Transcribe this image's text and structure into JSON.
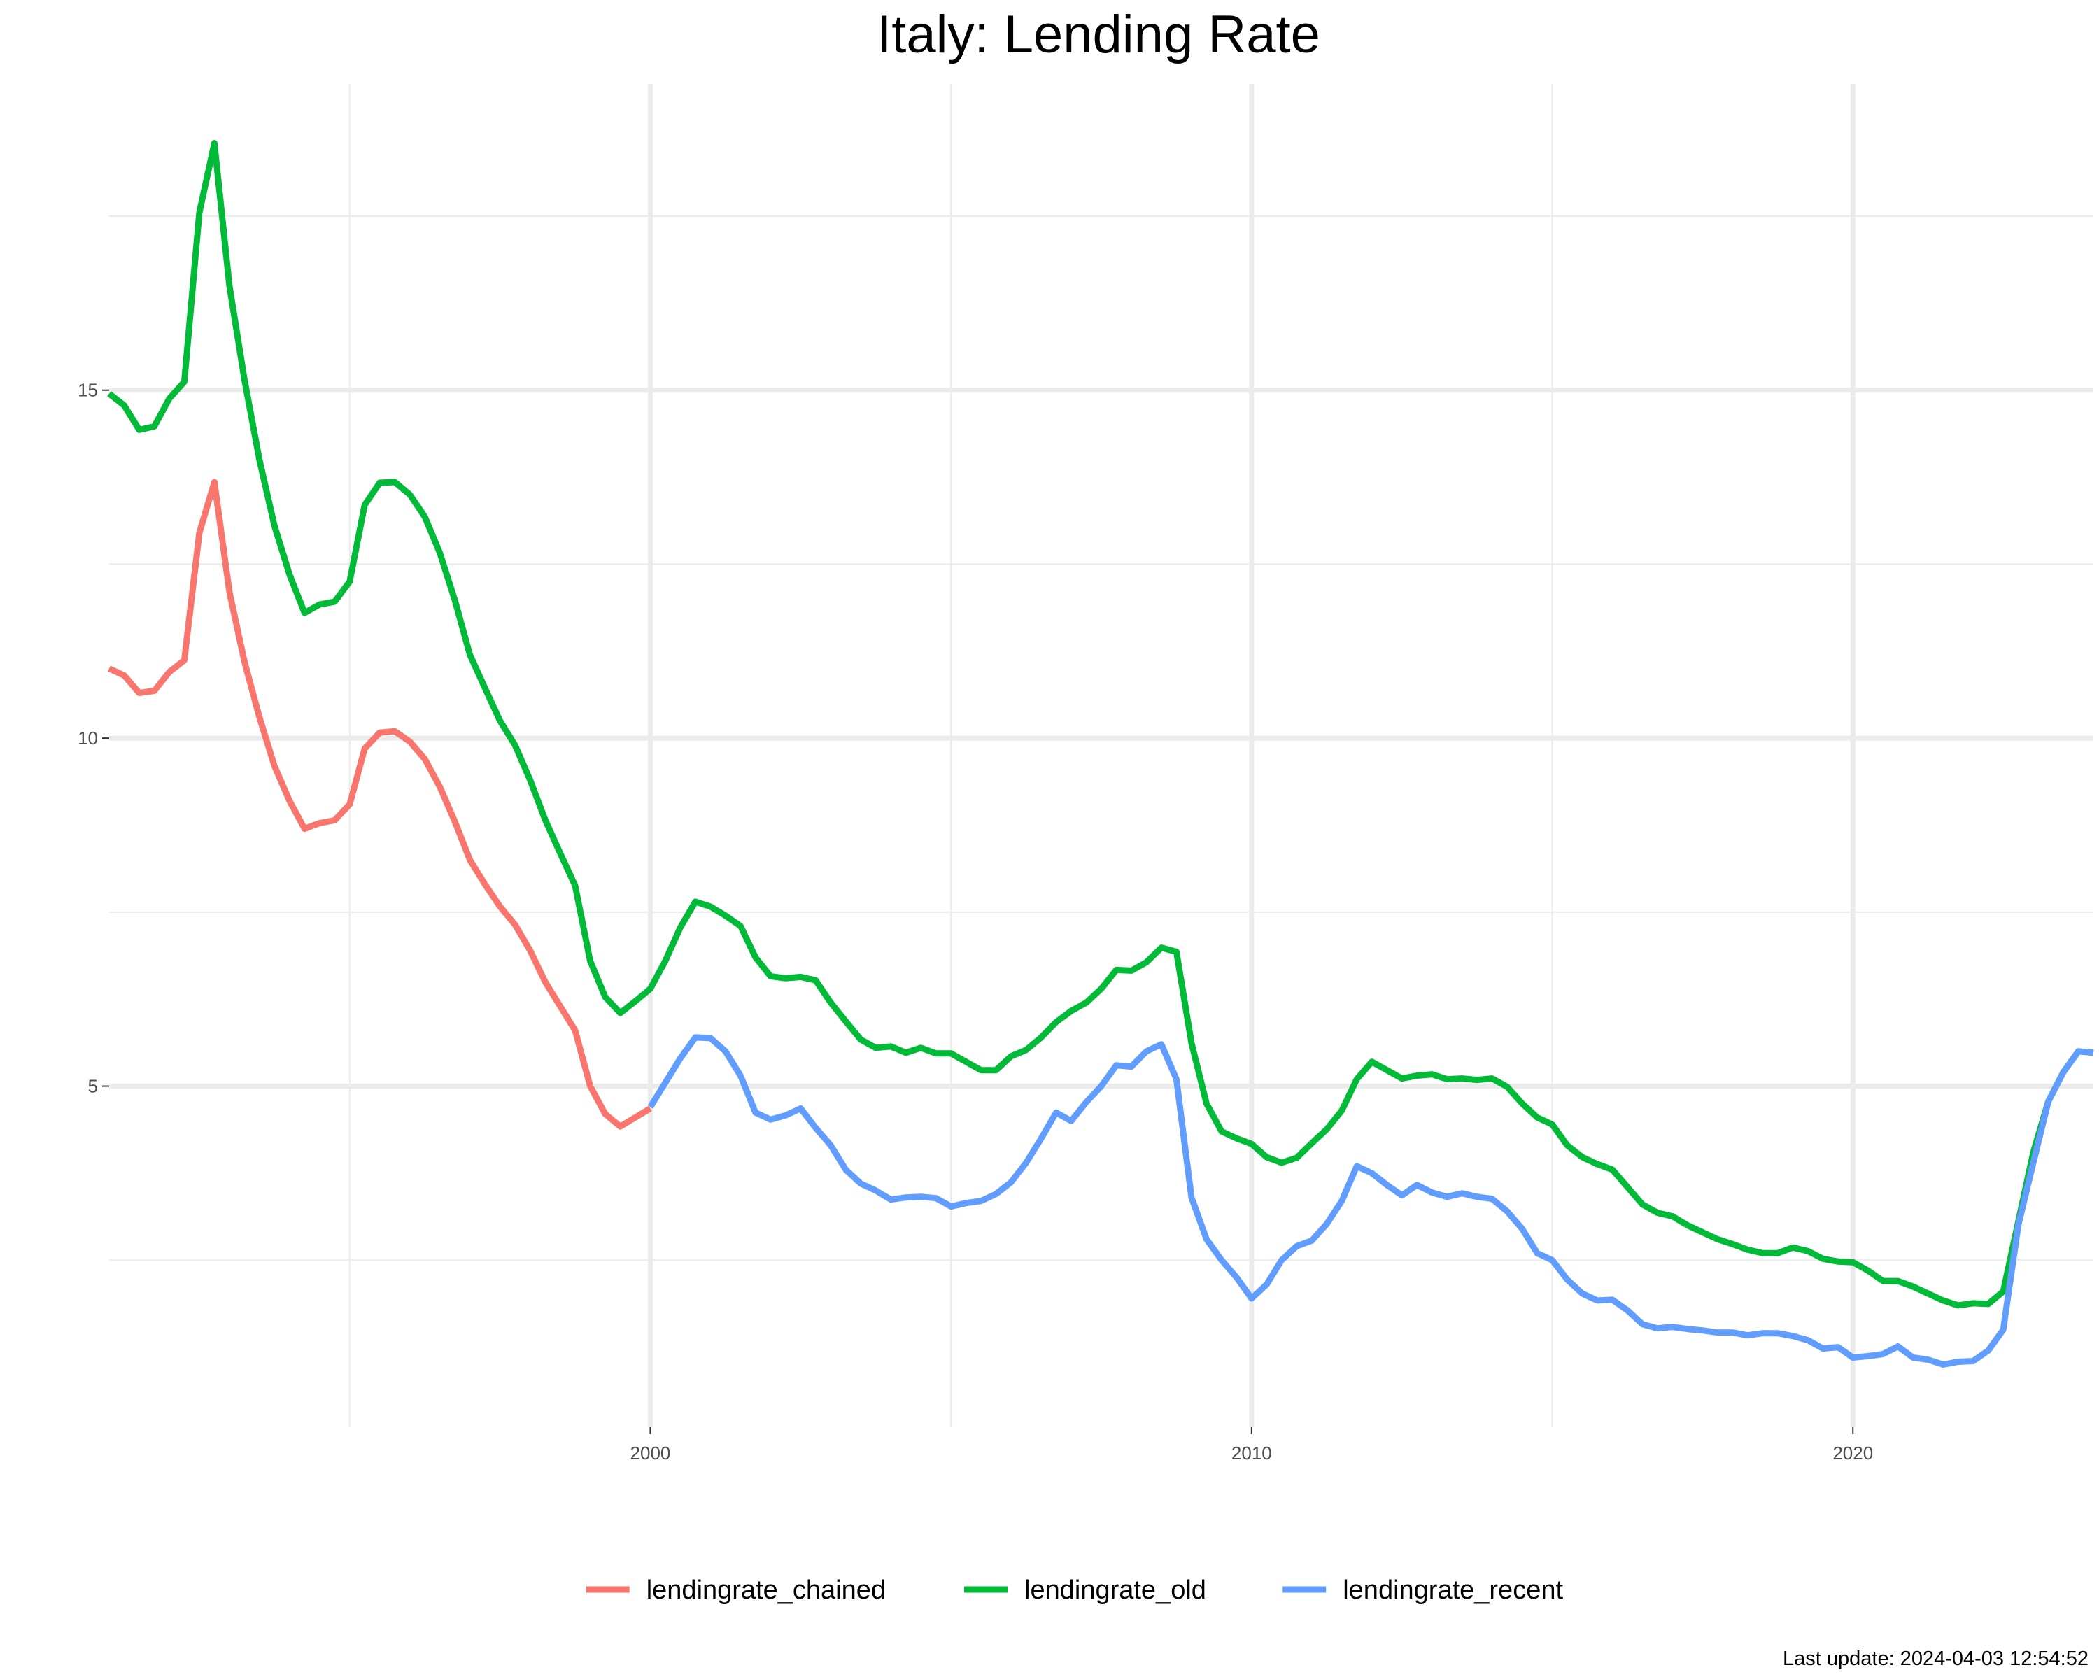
{
  "chart_data": {
    "type": "line",
    "title": "Italy: Lending Rate",
    "xlabel": "",
    "ylabel": "",
    "caption": "Last update: 2024-04-03 12:54:52",
    "xlim": [
      1991.0,
      2024.0
    ],
    "ylim": [
      0.1,
      19.4
    ],
    "x_ticks": [
      2000,
      2010,
      2020
    ],
    "x_minor_ticks": [
      1995,
      2005,
      2015
    ],
    "y_ticks": [
      5,
      10,
      15
    ],
    "y_minor_ticks": [
      2.5,
      7.5,
      12.5,
      17.5
    ],
    "grid": true,
    "legend_position": "bottom",
    "series": [
      {
        "name": "lendingrate_chained",
        "color": "#F8766D",
        "points": [
          [
            1991.0,
            11.0
          ],
          [
            1991.25,
            10.9
          ],
          [
            1991.5,
            10.65
          ],
          [
            1991.75,
            10.68
          ],
          [
            1992.0,
            10.95
          ],
          [
            1992.25,
            11.12
          ],
          [
            1992.5,
            12.95
          ],
          [
            1992.75,
            13.68
          ],
          [
            1993.0,
            12.1
          ],
          [
            1993.25,
            11.1
          ],
          [
            1993.5,
            10.3
          ],
          [
            1993.75,
            9.6
          ],
          [
            1994.0,
            9.1
          ],
          [
            1994.25,
            8.7
          ],
          [
            1994.5,
            8.78
          ],
          [
            1994.75,
            8.82
          ],
          [
            1995.0,
            9.05
          ],
          [
            1995.25,
            9.85
          ],
          [
            1995.5,
            10.08
          ],
          [
            1995.75,
            10.1
          ],
          [
            1996.0,
            9.95
          ],
          [
            1996.25,
            9.7
          ],
          [
            1996.5,
            9.3
          ],
          [
            1996.75,
            8.8
          ],
          [
            1997.0,
            8.25
          ],
          [
            1997.25,
            7.9
          ],
          [
            1997.5,
            7.58
          ],
          [
            1997.75,
            7.32
          ],
          [
            1998.0,
            6.95
          ],
          [
            1998.25,
            6.5
          ],
          [
            1998.5,
            6.15
          ],
          [
            1998.75,
            5.8
          ],
          [
            1999.0,
            5.0
          ],
          [
            1999.25,
            4.6
          ],
          [
            1999.5,
            4.42
          ],
          [
            1999.75,
            4.55
          ],
          [
            2000.0,
            4.68
          ]
        ]
      },
      {
        "name": "lendingrate_old",
        "color": "#00BA38",
        "points": [
          [
            1991.0,
            14.95
          ],
          [
            1991.25,
            14.78
          ],
          [
            1991.5,
            14.43
          ],
          [
            1991.75,
            14.48
          ],
          [
            1992.0,
            14.88
          ],
          [
            1992.25,
            15.12
          ],
          [
            1992.5,
            17.55
          ],
          [
            1992.75,
            18.55
          ],
          [
            1993.0,
            16.5
          ],
          [
            1993.25,
            15.15
          ],
          [
            1993.5,
            14.0
          ],
          [
            1993.75,
            13.05
          ],
          [
            1994.0,
            12.35
          ],
          [
            1994.25,
            11.8
          ],
          [
            1994.5,
            11.92
          ],
          [
            1994.75,
            11.96
          ],
          [
            1995.0,
            12.25
          ],
          [
            1995.25,
            13.35
          ],
          [
            1995.5,
            13.67
          ],
          [
            1995.75,
            13.68
          ],
          [
            1996.0,
            13.5
          ],
          [
            1996.25,
            13.18
          ],
          [
            1996.5,
            12.66
          ],
          [
            1996.75,
            11.98
          ],
          [
            1997.0,
            11.2
          ],
          [
            1997.25,
            10.72
          ],
          [
            1997.5,
            10.25
          ],
          [
            1997.75,
            9.9
          ],
          [
            1998.0,
            9.4
          ],
          [
            1998.25,
            8.83
          ],
          [
            1998.5,
            8.35
          ],
          [
            1998.75,
            7.88
          ],
          [
            1999.0,
            6.8
          ],
          [
            1999.25,
            6.28
          ],
          [
            1999.5,
            6.05
          ],
          [
            1999.75,
            6.22
          ],
          [
            2000.0,
            6.4
          ],
          [
            2000.25,
            6.8
          ],
          [
            2000.5,
            7.28
          ],
          [
            2000.75,
            7.65
          ],
          [
            2001.0,
            7.58
          ],
          [
            2001.25,
            7.45
          ],
          [
            2001.5,
            7.3
          ],
          [
            2001.75,
            6.85
          ],
          [
            2002.0,
            6.58
          ],
          [
            2002.25,
            6.55
          ],
          [
            2002.5,
            6.57
          ],
          [
            2002.75,
            6.52
          ],
          [
            2003.0,
            6.2
          ],
          [
            2003.25,
            5.93
          ],
          [
            2003.5,
            5.67
          ],
          [
            2003.75,
            5.55
          ],
          [
            2004.0,
            5.57
          ],
          [
            2004.25,
            5.48
          ],
          [
            2004.5,
            5.55
          ],
          [
            2004.75,
            5.47
          ],
          [
            2005.0,
            5.47
          ],
          [
            2005.25,
            5.35
          ],
          [
            2005.5,
            5.23
          ],
          [
            2005.75,
            5.23
          ],
          [
            2006.0,
            5.43
          ],
          [
            2006.25,
            5.52
          ],
          [
            2006.5,
            5.7
          ],
          [
            2006.75,
            5.92
          ],
          [
            2007.0,
            6.08
          ],
          [
            2007.25,
            6.2
          ],
          [
            2007.5,
            6.4
          ],
          [
            2007.75,
            6.67
          ],
          [
            2008.0,
            6.66
          ],
          [
            2008.25,
            6.78
          ],
          [
            2008.5,
            6.99
          ],
          [
            2008.75,
            6.93
          ],
          [
            2009.0,
            5.62
          ],
          [
            2009.25,
            4.75
          ],
          [
            2009.5,
            4.35
          ],
          [
            2009.75,
            4.25
          ],
          [
            2010.0,
            4.17
          ],
          [
            2010.25,
            3.98
          ],
          [
            2010.5,
            3.9
          ],
          [
            2010.75,
            3.97
          ],
          [
            2011.0,
            4.18
          ],
          [
            2011.25,
            4.38
          ],
          [
            2011.5,
            4.65
          ],
          [
            2011.75,
            5.1
          ],
          [
            2012.0,
            5.35
          ],
          [
            2012.25,
            5.23
          ],
          [
            2012.5,
            5.11
          ],
          [
            2012.75,
            5.15
          ],
          [
            2013.0,
            5.17
          ],
          [
            2013.25,
            5.1
          ],
          [
            2013.5,
            5.11
          ],
          [
            2013.75,
            5.09
          ],
          [
            2014.0,
            5.11
          ],
          [
            2014.25,
            4.99
          ],
          [
            2014.5,
            4.75
          ],
          [
            2014.75,
            4.55
          ],
          [
            2015.0,
            4.45
          ],
          [
            2015.25,
            4.15
          ],
          [
            2015.5,
            3.98
          ],
          [
            2015.75,
            3.88
          ],
          [
            2016.0,
            3.8
          ],
          [
            2016.25,
            3.55
          ],
          [
            2016.5,
            3.3
          ],
          [
            2016.75,
            3.18
          ],
          [
            2017.0,
            3.13
          ],
          [
            2017.25,
            3.0
          ],
          [
            2017.5,
            2.9
          ],
          [
            2017.75,
            2.8
          ],
          [
            2018.0,
            2.73
          ],
          [
            2018.25,
            2.65
          ],
          [
            2018.5,
            2.6
          ],
          [
            2018.75,
            2.6
          ],
          [
            2019.0,
            2.68
          ],
          [
            2019.25,
            2.63
          ],
          [
            2019.5,
            2.52
          ],
          [
            2019.75,
            2.48
          ],
          [
            2020.0,
            2.47
          ],
          [
            2020.25,
            2.35
          ],
          [
            2020.5,
            2.2
          ],
          [
            2020.75,
            2.2
          ],
          [
            2021.0,
            2.12
          ],
          [
            2021.25,
            2.02
          ],
          [
            2021.5,
            1.92
          ],
          [
            2021.75,
            1.85
          ],
          [
            2022.0,
            1.88
          ],
          [
            2022.25,
            1.87
          ],
          [
            2022.5,
            2.05
          ],
          [
            2022.75,
            3.05
          ],
          [
            2023.0,
            4.05
          ],
          [
            2023.25,
            4.78
          ],
          [
            2023.5,
            5.2
          ],
          [
            2023.75,
            5.5
          ],
          [
            2024.0,
            5.48
          ]
        ]
      },
      {
        "name": "lendingrate_recent",
        "color": "#619CFF",
        "points": [
          [
            2000.0,
            4.7
          ],
          [
            2000.25,
            5.05
          ],
          [
            2000.5,
            5.4
          ],
          [
            2000.75,
            5.7
          ],
          [
            2001.0,
            5.69
          ],
          [
            2001.25,
            5.5
          ],
          [
            2001.5,
            5.15
          ],
          [
            2001.75,
            4.62
          ],
          [
            2002.0,
            4.52
          ],
          [
            2002.25,
            4.58
          ],
          [
            2002.5,
            4.68
          ],
          [
            2002.75,
            4.4
          ],
          [
            2003.0,
            4.15
          ],
          [
            2003.25,
            3.8
          ],
          [
            2003.5,
            3.6
          ],
          [
            2003.75,
            3.5
          ],
          [
            2004.0,
            3.37
          ],
          [
            2004.25,
            3.4
          ],
          [
            2004.5,
            3.41
          ],
          [
            2004.75,
            3.39
          ],
          [
            2005.0,
            3.27
          ],
          [
            2005.25,
            3.32
          ],
          [
            2005.5,
            3.35
          ],
          [
            2005.75,
            3.45
          ],
          [
            2006.0,
            3.62
          ],
          [
            2006.25,
            3.9
          ],
          [
            2006.5,
            4.25
          ],
          [
            2006.75,
            4.62
          ],
          [
            2007.0,
            4.5
          ],
          [
            2007.25,
            4.77
          ],
          [
            2007.5,
            5.0
          ],
          [
            2007.75,
            5.3
          ],
          [
            2008.0,
            5.28
          ],
          [
            2008.25,
            5.5
          ],
          [
            2008.5,
            5.6
          ],
          [
            2008.75,
            5.1
          ],
          [
            2009.0,
            3.4
          ],
          [
            2009.25,
            2.8
          ],
          [
            2009.5,
            2.5
          ],
          [
            2009.75,
            2.25
          ],
          [
            2010.0,
            1.95
          ],
          [
            2010.25,
            2.15
          ],
          [
            2010.5,
            2.5
          ],
          [
            2010.75,
            2.7
          ],
          [
            2011.0,
            2.78
          ],
          [
            2011.25,
            3.02
          ],
          [
            2011.5,
            3.35
          ],
          [
            2011.75,
            3.85
          ],
          [
            2012.0,
            3.75
          ],
          [
            2012.25,
            3.58
          ],
          [
            2012.5,
            3.43
          ],
          [
            2012.75,
            3.58
          ],
          [
            2013.0,
            3.47
          ],
          [
            2013.25,
            3.41
          ],
          [
            2013.5,
            3.46
          ],
          [
            2013.75,
            3.41
          ],
          [
            2014.0,
            3.38
          ],
          [
            2014.25,
            3.2
          ],
          [
            2014.5,
            2.95
          ],
          [
            2014.75,
            2.6
          ],
          [
            2015.0,
            2.5
          ],
          [
            2015.25,
            2.22
          ],
          [
            2015.5,
            2.02
          ],
          [
            2015.75,
            1.92
          ],
          [
            2016.0,
            1.93
          ],
          [
            2016.25,
            1.78
          ],
          [
            2016.5,
            1.58
          ],
          [
            2016.75,
            1.52
          ],
          [
            2017.0,
            1.54
          ],
          [
            2017.25,
            1.51
          ],
          [
            2017.5,
            1.49
          ],
          [
            2017.75,
            1.46
          ],
          [
            2018.0,
            1.46
          ],
          [
            2018.25,
            1.42
          ],
          [
            2018.5,
            1.45
          ],
          [
            2018.75,
            1.45
          ],
          [
            2019.0,
            1.41
          ],
          [
            2019.25,
            1.35
          ],
          [
            2019.5,
            1.23
          ],
          [
            2019.75,
            1.25
          ],
          [
            2020.0,
            1.1
          ],
          [
            2020.25,
            1.12
          ],
          [
            2020.5,
            1.15
          ],
          [
            2020.75,
            1.26
          ],
          [
            2021.0,
            1.1
          ],
          [
            2021.25,
            1.07
          ],
          [
            2021.5,
            1.0
          ],
          [
            2021.75,
            1.04
          ],
          [
            2022.0,
            1.05
          ],
          [
            2022.25,
            1.2
          ],
          [
            2022.5,
            1.5
          ],
          [
            2022.75,
            3.0
          ],
          [
            2023.0,
            3.9
          ],
          [
            2023.25,
            4.78
          ],
          [
            2023.5,
            5.2
          ],
          [
            2023.75,
            5.5
          ],
          [
            2024.0,
            5.48
          ]
        ]
      }
    ]
  }
}
